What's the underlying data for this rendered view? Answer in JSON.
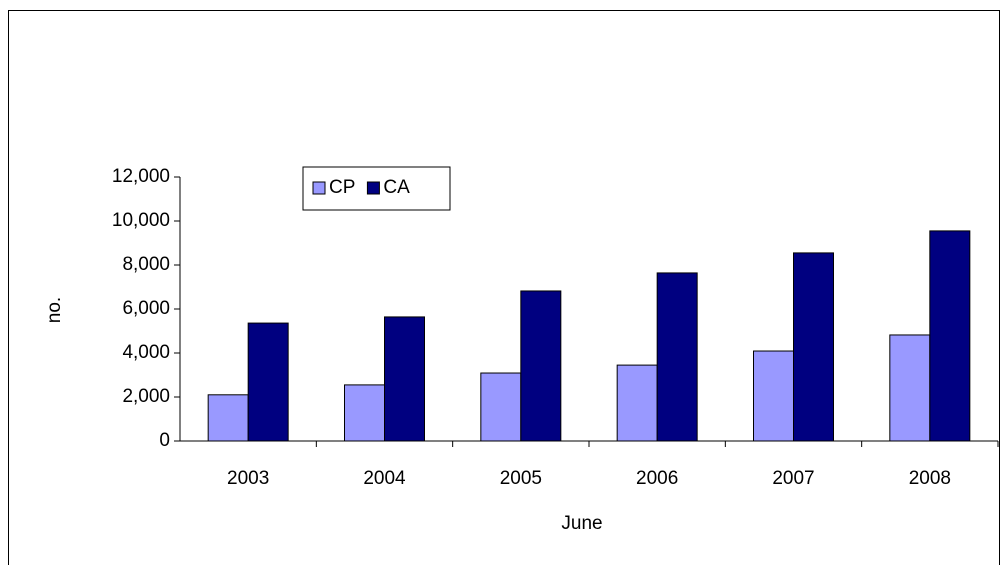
{
  "chart_data": {
    "type": "bar",
    "x_label": "June",
    "y_label": "no.",
    "categories": [
      "2003",
      "2004",
      "2005",
      "2006",
      "2007",
      "2008"
    ],
    "series": [
      {
        "name": "CP",
        "color": "#9999ff",
        "values": [
          2100,
          2550,
          3090,
          3450,
          4090,
          4820
        ]
      },
      {
        "name": "CA",
        "color": "#000080",
        "values": [
          5360,
          5640,
          6820,
          7640,
          8550,
          9550
        ]
      }
    ],
    "ylim": [
      0,
      12000
    ],
    "yticks": [
      0,
      {
        "value": 2000,
        "label": "2,000"
      },
      {
        "value": 4000,
        "label": "4,000"
      },
      {
        "value": 6000,
        "label": "6,000"
      },
      {
        "value": 8000,
        "label": "8,000"
      },
      {
        "value": 10000,
        "label": "10,000"
      },
      {
        "value": 12000,
        "label": "12,000"
      }
    ],
    "legend": "top-left"
  }
}
